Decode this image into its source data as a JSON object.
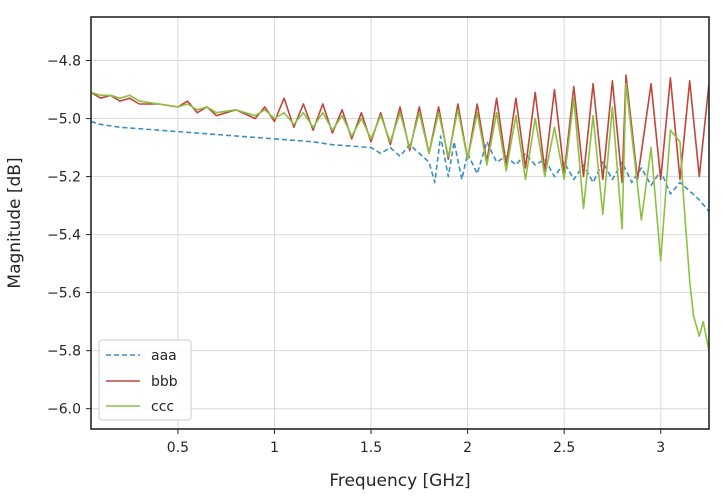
{
  "chart_data": {
    "type": "line",
    "title": "",
    "xlabel": "Frequency [GHz]",
    "ylabel": "Magnitude [dB]",
    "xlim": [
      0.05,
      3.25
    ],
    "ylim": [
      -6.07,
      -4.65
    ],
    "x_ticks": [
      0.5,
      1,
      1.5,
      2,
      2.5,
      3
    ],
    "x_tick_labels": [
      "0.5",
      "1",
      "1.5",
      "2",
      "2.5",
      "3"
    ],
    "y_ticks": [
      -4.8,
      -5.0,
      -5.2,
      -5.4,
      -5.6,
      -5.8,
      -6.0
    ],
    "y_tick_labels": [
      "−4.8",
      "−5.0",
      "−5.2",
      "−5.4",
      "−5.6",
      "−5.8",
      "−6.0"
    ],
    "grid": true,
    "legend_position": "lower-left",
    "series": [
      {
        "name": "aaa",
        "color": "#3a8ec4",
        "style": "dashed",
        "points": [
          [
            0.05,
            -5.01
          ],
          [
            0.1,
            -5.02
          ],
          [
            0.2,
            -5.03
          ],
          [
            0.3,
            -5.035
          ],
          [
            0.4,
            -5.04
          ],
          [
            0.5,
            -5.045
          ],
          [
            0.6,
            -5.05
          ],
          [
            0.7,
            -5.055
          ],
          [
            0.8,
            -5.06
          ],
          [
            0.9,
            -5.065
          ],
          [
            1.0,
            -5.07
          ],
          [
            1.1,
            -5.075
          ],
          [
            1.2,
            -5.08
          ],
          [
            1.3,
            -5.09
          ],
          [
            1.4,
            -5.095
          ],
          [
            1.5,
            -5.1
          ],
          [
            1.55,
            -5.12
          ],
          [
            1.6,
            -5.1
          ],
          [
            1.65,
            -5.13
          ],
          [
            1.7,
            -5.09
          ],
          [
            1.75,
            -5.12
          ],
          [
            1.8,
            -5.15
          ],
          [
            1.83,
            -5.22
          ],
          [
            1.86,
            -5.06
          ],
          [
            1.9,
            -5.2
          ],
          [
            1.93,
            -5.08
          ],
          [
            1.97,
            -5.21
          ],
          [
            2.0,
            -5.12
          ],
          [
            2.05,
            -5.19
          ],
          [
            2.1,
            -5.08
          ],
          [
            2.15,
            -5.15
          ],
          [
            2.2,
            -5.13
          ],
          [
            2.25,
            -5.16
          ],
          [
            2.3,
            -5.12
          ],
          [
            2.35,
            -5.16
          ],
          [
            2.4,
            -5.14
          ],
          [
            2.45,
            -5.2
          ],
          [
            2.5,
            -5.15
          ],
          [
            2.55,
            -5.21
          ],
          [
            2.6,
            -5.16
          ],
          [
            2.65,
            -5.22
          ],
          [
            2.7,
            -5.15
          ],
          [
            2.75,
            -5.21
          ],
          [
            2.8,
            -5.15
          ],
          [
            2.85,
            -5.22
          ],
          [
            2.9,
            -5.17
          ],
          [
            2.95,
            -5.23
          ],
          [
            3.0,
            -5.18
          ],
          [
            3.05,
            -5.26
          ],
          [
            3.1,
            -5.22
          ],
          [
            3.15,
            -5.25
          ],
          [
            3.2,
            -5.28
          ],
          [
            3.25,
            -5.32
          ]
        ]
      },
      {
        "name": "bbb",
        "color": "#c0463a",
        "style": "solid",
        "points": [
          [
            0.05,
            -4.91
          ],
          [
            0.1,
            -4.93
          ],
          [
            0.15,
            -4.92
          ],
          [
            0.2,
            -4.94
          ],
          [
            0.25,
            -4.93
          ],
          [
            0.3,
            -4.95
          ],
          [
            0.4,
            -4.95
          ],
          [
            0.5,
            -4.96
          ],
          [
            0.55,
            -4.94
          ],
          [
            0.6,
            -4.98
          ],
          [
            0.65,
            -4.96
          ],
          [
            0.7,
            -4.99
          ],
          [
            0.8,
            -4.97
          ],
          [
            0.9,
            -5.0
          ],
          [
            0.95,
            -4.96
          ],
          [
            1.0,
            -5.01
          ],
          [
            1.05,
            -4.93
          ],
          [
            1.1,
            -5.03
          ],
          [
            1.15,
            -4.95
          ],
          [
            1.2,
            -5.04
          ],
          [
            1.25,
            -4.95
          ],
          [
            1.3,
            -5.05
          ],
          [
            1.35,
            -4.97
          ],
          [
            1.4,
            -5.07
          ],
          [
            1.45,
            -4.98
          ],
          [
            1.5,
            -5.08
          ],
          [
            1.55,
            -4.98
          ],
          [
            1.6,
            -5.09
          ],
          [
            1.65,
            -4.96
          ],
          [
            1.7,
            -5.11
          ],
          [
            1.75,
            -4.96
          ],
          [
            1.8,
            -5.12
          ],
          [
            1.85,
            -4.96
          ],
          [
            1.9,
            -5.14
          ],
          [
            1.95,
            -4.95
          ],
          [
            2.0,
            -5.14
          ],
          [
            2.05,
            -4.95
          ],
          [
            2.1,
            -5.15
          ],
          [
            2.15,
            -4.93
          ],
          [
            2.2,
            -5.16
          ],
          [
            2.25,
            -4.93
          ],
          [
            2.3,
            -5.17
          ],
          [
            2.35,
            -4.91
          ],
          [
            2.4,
            -5.18
          ],
          [
            2.45,
            -4.9
          ],
          [
            2.5,
            -5.19
          ],
          [
            2.55,
            -4.89
          ],
          [
            2.6,
            -5.2
          ],
          [
            2.65,
            -4.88
          ],
          [
            2.7,
            -5.21
          ],
          [
            2.75,
            -4.87
          ],
          [
            2.8,
            -5.22
          ],
          [
            2.82,
            -4.85
          ],
          [
            2.88,
            -5.21
          ],
          [
            2.95,
            -4.88
          ],
          [
            3.0,
            -5.21
          ],
          [
            3.05,
            -4.86
          ],
          [
            3.1,
            -5.21
          ],
          [
            3.15,
            -4.87
          ],
          [
            3.2,
            -5.2
          ],
          [
            3.25,
            -4.88
          ]
        ]
      },
      {
        "name": "ccc",
        "color": "#8cc043",
        "style": "solid",
        "points": [
          [
            0.05,
            -4.91
          ],
          [
            0.1,
            -4.92
          ],
          [
            0.15,
            -4.92
          ],
          [
            0.2,
            -4.93
          ],
          [
            0.25,
            -4.92
          ],
          [
            0.3,
            -4.94
          ],
          [
            0.4,
            -4.95
          ],
          [
            0.5,
            -4.96
          ],
          [
            0.55,
            -4.95
          ],
          [
            0.6,
            -4.97
          ],
          [
            0.65,
            -4.96
          ],
          [
            0.7,
            -4.98
          ],
          [
            0.8,
            -4.97
          ],
          [
            0.9,
            -4.99
          ],
          [
            0.95,
            -4.97
          ],
          [
            1.0,
            -5.0
          ],
          [
            1.05,
            -4.98
          ],
          [
            1.1,
            -5.02
          ],
          [
            1.15,
            -4.98
          ],
          [
            1.2,
            -5.03
          ],
          [
            1.25,
            -4.98
          ],
          [
            1.3,
            -5.04
          ],
          [
            1.35,
            -4.99
          ],
          [
            1.4,
            -5.06
          ],
          [
            1.45,
            -5.0
          ],
          [
            1.5,
            -5.07
          ],
          [
            1.55,
            -4.99
          ],
          [
            1.6,
            -5.08
          ],
          [
            1.65,
            -4.98
          ],
          [
            1.7,
            -5.1
          ],
          [
            1.75,
            -4.98
          ],
          [
            1.8,
            -5.12
          ],
          [
            1.85,
            -4.98
          ],
          [
            1.9,
            -5.13
          ],
          [
            1.95,
            -4.97
          ],
          [
            2.0,
            -5.14
          ],
          [
            2.05,
            -4.98
          ],
          [
            2.1,
            -5.16
          ],
          [
            2.15,
            -4.98
          ],
          [
            2.2,
            -5.18
          ],
          [
            2.25,
            -4.99
          ],
          [
            2.3,
            -5.21
          ],
          [
            2.35,
            -5.0
          ],
          [
            2.4,
            -5.2
          ],
          [
            2.45,
            -5.03
          ],
          [
            2.5,
            -5.21
          ],
          [
            2.55,
            -4.93
          ],
          [
            2.6,
            -5.31
          ],
          [
            2.65,
            -4.99
          ],
          [
            2.7,
            -5.33
          ],
          [
            2.75,
            -4.96
          ],
          [
            2.8,
            -5.38
          ],
          [
            2.82,
            -4.88
          ],
          [
            2.9,
            -5.35
          ],
          [
            2.95,
            -5.1
          ],
          [
            3.0,
            -5.49
          ],
          [
            3.05,
            -5.04
          ],
          [
            3.1,
            -5.08
          ],
          [
            3.12,
            -5.29
          ],
          [
            3.15,
            -5.56
          ],
          [
            3.17,
            -5.68
          ],
          [
            3.2,
            -5.75
          ],
          [
            3.22,
            -5.7
          ],
          [
            3.25,
            -5.8
          ]
        ]
      }
    ]
  }
}
